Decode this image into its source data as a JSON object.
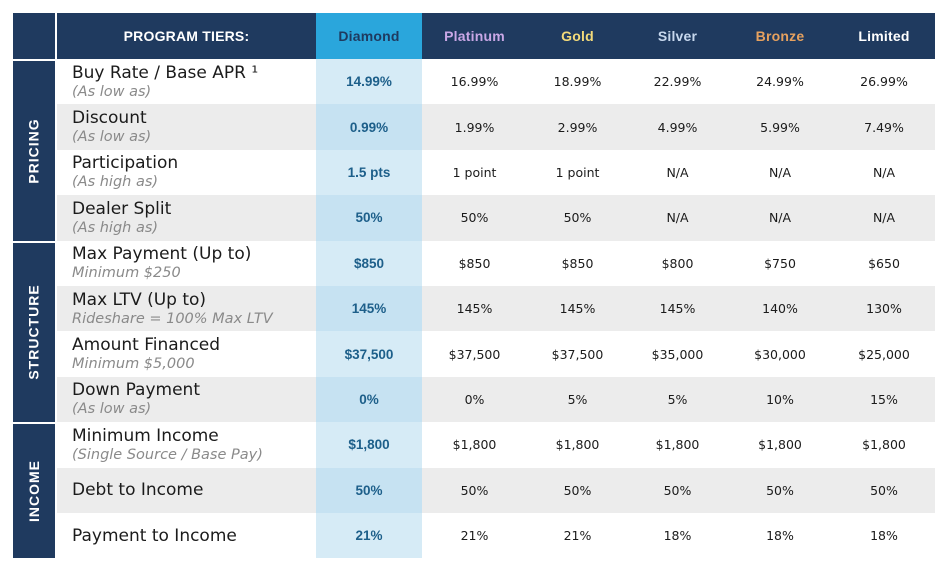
{
  "header": {
    "label": "PROGRAM TIERS:",
    "tiers": [
      "Diamond",
      "Platinum",
      "Gold",
      "Silver",
      "Bronze",
      "Limited"
    ]
  },
  "sections": [
    {
      "name": "PRICING",
      "rows": 4
    },
    {
      "name": "STRUCTURE",
      "rows": 4
    },
    {
      "name": "INCOME",
      "rows": 3
    }
  ],
  "rows": [
    {
      "label": "Buy Rate / Base APR ¹",
      "sub": "(As low as)",
      "values": [
        "14.99%",
        "16.99%",
        "18.99%",
        "22.99%",
        "24.99%",
        "26.99%"
      ]
    },
    {
      "label": "Discount",
      "sub": "(As low as)",
      "values": [
        "0.99%",
        "1.99%",
        "2.99%",
        "4.99%",
        "5.99%",
        "7.49%"
      ]
    },
    {
      "label": "Participation",
      "sub": "(As high as)",
      "values": [
        "1.5 pts",
        "1 point",
        "1 point",
        "N/A",
        "N/A",
        "N/A"
      ]
    },
    {
      "label": "Dealer Split",
      "sub": "(As high as)",
      "values": [
        "50%",
        "50%",
        "50%",
        "N/A",
        "N/A",
        "N/A"
      ]
    },
    {
      "label": "Max Payment (Up to)",
      "sub": "Minimum $250",
      "values": [
        "$850",
        "$850",
        "$850",
        "$800",
        "$750",
        "$650"
      ]
    },
    {
      "label": "Max LTV (Up to)",
      "sub": "Rideshare = 100% Max LTV",
      "values": [
        "145%",
        "145%",
        "145%",
        "145%",
        "140%",
        "130%"
      ]
    },
    {
      "label": "Amount Financed",
      "sub": "Minimum $5,000",
      "values": [
        "$37,500",
        "$37,500",
        "$37,500",
        "$35,000",
        "$30,000",
        "$25,000"
      ]
    },
    {
      "label": "Down Payment",
      "sub": "(As low as)",
      "values": [
        "0%",
        "0%",
        "5%",
        "5%",
        "10%",
        "15%"
      ]
    },
    {
      "label": "Minimum Income",
      "sub": "(Single Source / Base Pay)",
      "values": [
        "$1,800",
        "$1,800",
        "$1,800",
        "$1,800",
        "$1,800",
        "$1,800"
      ]
    },
    {
      "label": "Debt to Income",
      "sub": "",
      "values": [
        "50%",
        "50%",
        "50%",
        "50%",
        "50%",
        "50%"
      ]
    },
    {
      "label": "Payment to Income",
      "sub": "",
      "values": [
        "21%",
        "21%",
        "21%",
        "18%",
        "18%",
        "18%"
      ]
    }
  ],
  "colors": {
    "navy": "#1f3a5f",
    "diamond": "#2aa6dc",
    "platinum": "#c9a7e6",
    "gold": "#f3da7a",
    "silver": "#c7d8ee",
    "bronze": "#e6a15f",
    "diamond_value": "#1d5f8a",
    "row_shade": "#ececec"
  }
}
